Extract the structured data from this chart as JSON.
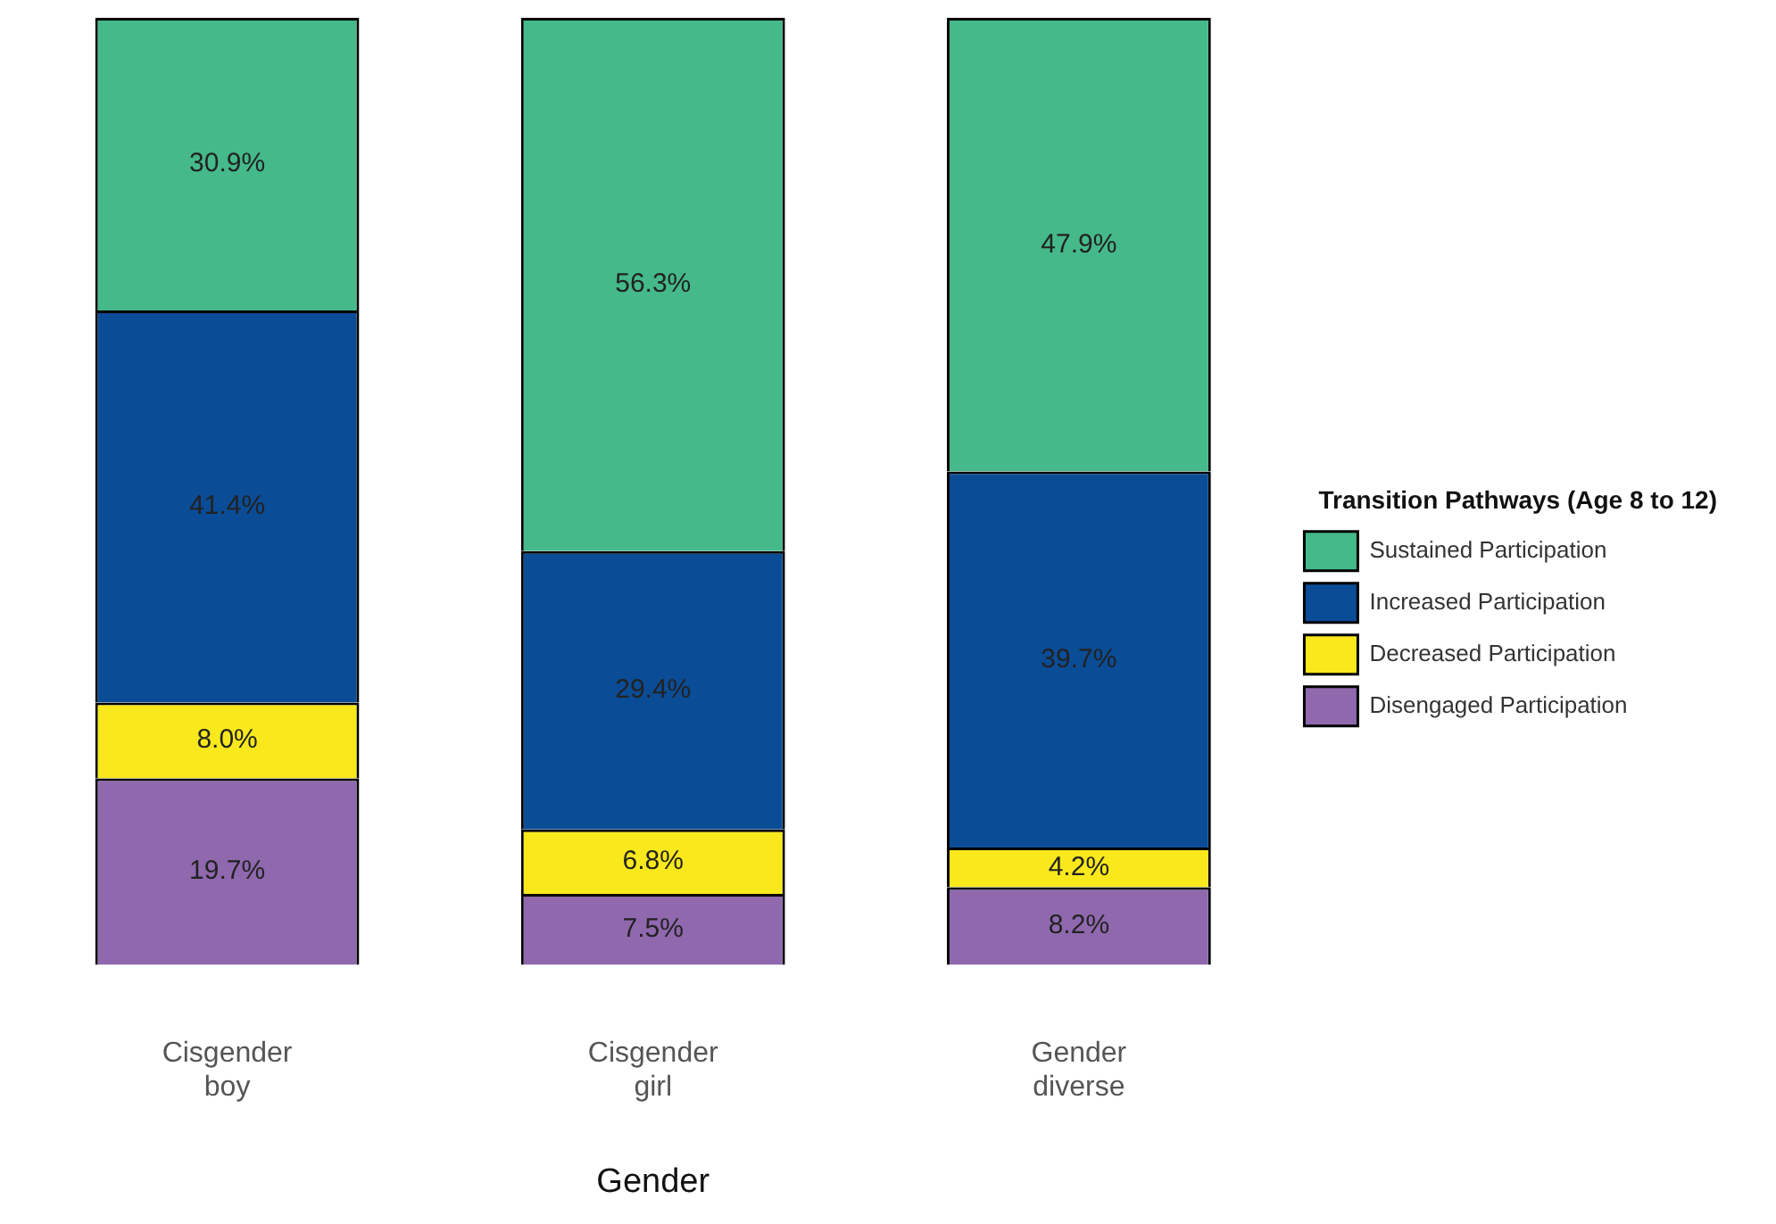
{
  "chart_data": {
    "type": "bar",
    "stacked": true,
    "xlabel": "Gender",
    "legend_title": "Transition Pathways (Age 8 to 12)",
    "legend": "right",
    "ylim": [
      0,
      100
    ],
    "tick_labels": "x",
    "grid": false,
    "categories": [
      "Cisgender boy",
      "Cisgender girl",
      "Gender diverse"
    ],
    "series": [
      {
        "name": "Disengaged Participation",
        "color": "#8f68ae",
        "values": [
          19.7,
          7.5,
          8.2
        ],
        "value_labels": [
          "19.7%",
          "7.5%",
          "8.2%"
        ]
      },
      {
        "name": "Decreased Participation",
        "color": "#f8e81c",
        "values": [
          8.0,
          6.8,
          4.2
        ],
        "value_labels": [
          "8.0%",
          "6.8%",
          "4.2%"
        ]
      },
      {
        "name": "Increased Participation",
        "color": "#0b4c96",
        "values": [
          41.4,
          29.4,
          39.7
        ],
        "value_labels": [
          "41.4%",
          "29.4%",
          "39.7%"
        ]
      },
      {
        "name": "Sustained Participation",
        "color": "#45b98a",
        "values": [
          30.9,
          56.3,
          47.9
        ],
        "value_labels": [
          "30.9%",
          "56.3%",
          "47.9%"
        ]
      }
    ]
  }
}
